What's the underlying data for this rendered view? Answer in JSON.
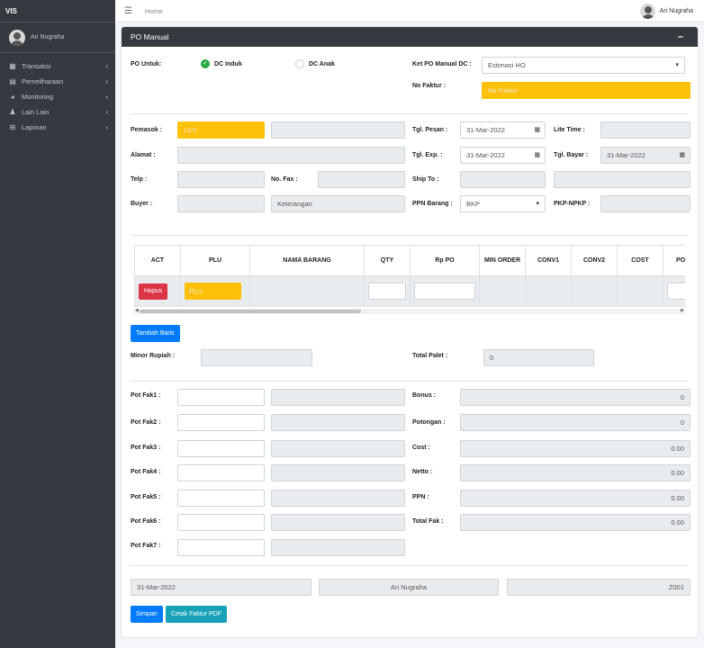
{
  "sidebar": {
    "brand": "VIS",
    "user_name": "Ari Nugraha",
    "items": [
      {
        "label": "Transaksi",
        "icon": "grid-icon"
      },
      {
        "label": "Pemeliharaan",
        "icon": "file-icon"
      },
      {
        "label": "Monitoring",
        "icon": "pie-chart-icon"
      },
      {
        "label": "Lain Lain",
        "icon": "person-icon"
      },
      {
        "label": "Laporan",
        "icon": "table-icon"
      }
    ]
  },
  "topbar": {
    "home": "Home",
    "user_name": "Ari Nugraha"
  },
  "card": {
    "title": "PO Manual"
  },
  "form": {
    "po_untuk_label": "PO Untuk:",
    "dc_induk": "DC Induk",
    "dc_anak": "DC Anak",
    "ket_po_label": "Ket PO Manual DC :",
    "ket_po_value": "Estimasi HO",
    "no_faktur_label": "No Faktur :",
    "no_faktur_placeholder": "No Faktur",
    "pemasok_label": "Pemasok :",
    "pemasok_value": "LCV",
    "alamat_label": "Alamat :",
    "telp_label": "Telp :",
    "fax_label": "No. Fax :",
    "buyer_label": "Buyer :",
    "keterangan_placeholder": "Keterangan",
    "tgl_pesan_label": "Tgl. Pesan :",
    "tgl_pesan_value": "31-Mar-2022",
    "tgl_exp_label": "Tgl. Exp. :",
    "tgl_exp_value": "31-Mar-2022",
    "ship_to_label": "Ship To :",
    "ppn_barang_label": "PPN Barang :",
    "ppn_barang_value": "BKP",
    "lite_time_label": "Lite Time :",
    "tgl_bayar_label": "Tgl. Bayar :",
    "tgl_bayar_value": "31-Mar-2022",
    "pkp_label": "PKP-NPKP :"
  },
  "table": {
    "headers": [
      "ACT",
      "PLU",
      "NAMA BARANG",
      "QTY",
      "Rp PO",
      "MIN ORDER",
      "CONV1",
      "CONV2",
      "COST",
      "PO"
    ],
    "hapus_label": "Hapus",
    "plu_placeholder": "PLU"
  },
  "tambah_baris": "Tambah Baris",
  "minor_rupiah_label": "Minor Rupiah :",
  "total_palet_label": "Total Palet :",
  "total_palet_value": "0",
  "pot_labels": [
    "Pot Fak1 :",
    "Pot Fak2 :",
    "Pot Fak3 :",
    "Pot Fak4 :",
    "Pot Fak5 :",
    "Pot Fak6 :",
    "Pot Fak7 :"
  ],
  "totals": [
    {
      "label": "Bonus :",
      "value": "0"
    },
    {
      "label": "Potongan :",
      "value": "0"
    },
    {
      "label": "Cost :",
      "value": "0.00"
    },
    {
      "label": "Netto :",
      "value": "0.00"
    },
    {
      "label": "PPN :",
      "value": "0.00"
    },
    {
      "label": "Total Fak :",
      "value": "0.00"
    }
  ],
  "footer": {
    "date": "31-Mar-2022",
    "user": "Ari Nugraha",
    "code": "Z001"
  },
  "buttons": {
    "simpan": "Simpan",
    "cetak": "Cetak Faktur PDF"
  }
}
